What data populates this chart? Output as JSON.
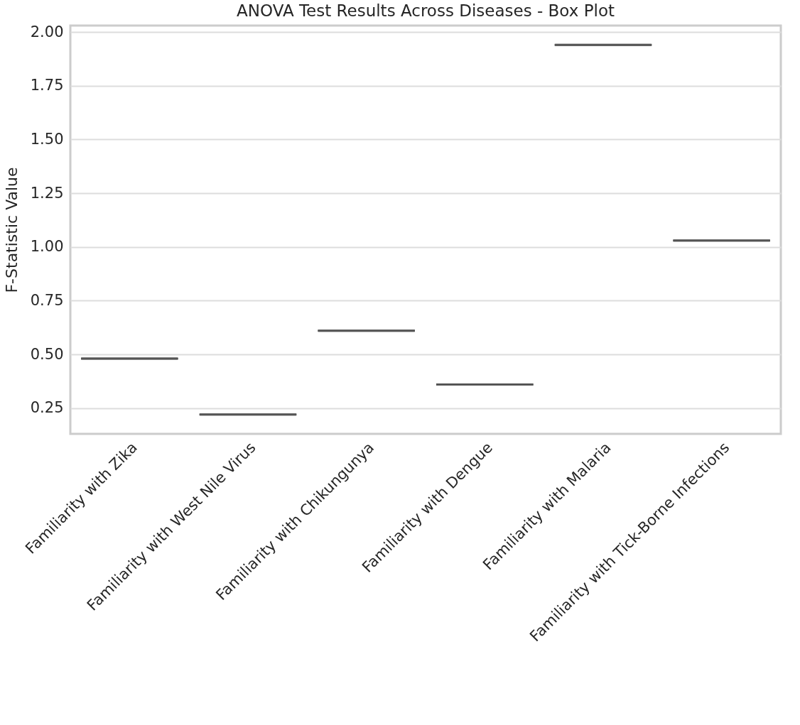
{
  "chart_data": {
    "type": "box",
    "title": "ANOVA Test Results Across Diseases - Box Plot",
    "ylabel": "F-Statistic Value",
    "categories": [
      "Familiarity with Zika",
      "Familiarity with West Nile Virus",
      "Familiarity with Chikungunya",
      "Familiarity with Dengue",
      "Familiarity with Malaria",
      "Familiarity with Tick-Borne Infections"
    ],
    "boxes": [
      {
        "low": 0.48,
        "q1": 0.48,
        "median": 0.48,
        "q3": 0.48,
        "high": 0.48
      },
      {
        "low": 0.22,
        "q1": 0.22,
        "median": 0.22,
        "q3": 0.22,
        "high": 0.22
      },
      {
        "low": 0.61,
        "q1": 0.61,
        "median": 0.61,
        "q3": 0.61,
        "high": 0.61
      },
      {
        "low": 0.36,
        "q1": 0.36,
        "median": 0.36,
        "q3": 0.36,
        "high": 0.36
      },
      {
        "low": 1.94,
        "q1": 1.94,
        "median": 1.94,
        "q3": 1.94,
        "high": 1.94
      },
      {
        "low": 1.03,
        "q1": 1.03,
        "median": 1.03,
        "q3": 1.03,
        "high": 1.03
      }
    ],
    "color": "#555555",
    "ylim": [
      0.13,
      2.03
    ],
    "yticks": [
      {
        "value": 0.25,
        "label": "0.25"
      },
      {
        "value": 0.5,
        "label": "0.50"
      },
      {
        "value": 0.75,
        "label": "0.75"
      },
      {
        "value": 1,
        "label": "1.00"
      },
      {
        "value": 1.25,
        "label": "1.25"
      },
      {
        "value": 1.5,
        "label": "1.50"
      },
      {
        "value": 1.75,
        "label": "1.75"
      },
      {
        "value": 2,
        "label": "2.00"
      }
    ],
    "grid": "y"
  }
}
